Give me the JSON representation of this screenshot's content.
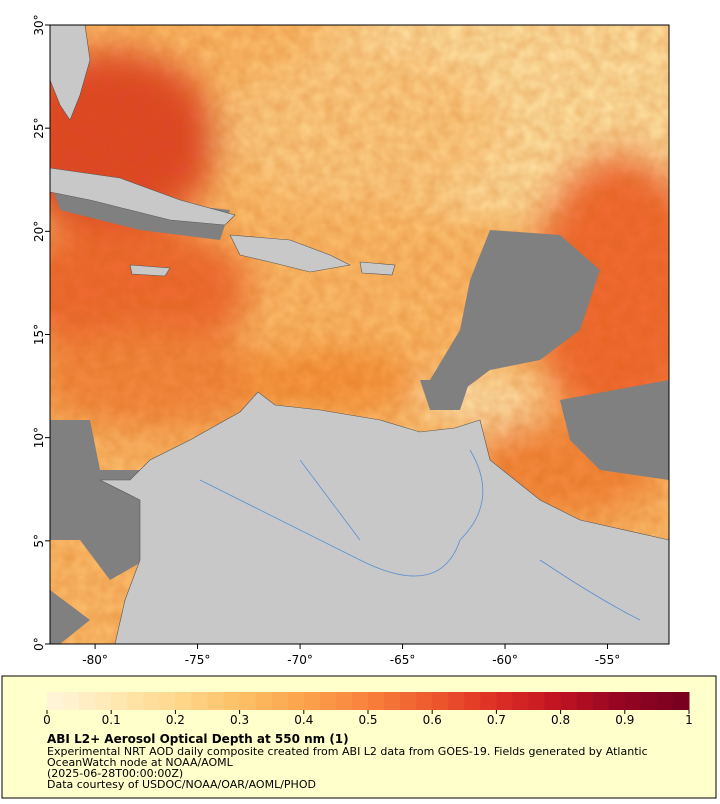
{
  "chart_data": {
    "type": "map",
    "xlim": [
      -82.2,
      -52.0
    ],
    "ylim": [
      0,
      30
    ],
    "xticks": [
      {
        "value": -80,
        "label": "-80°"
      },
      {
        "value": -75,
        "label": "-75°"
      },
      {
        "value": -70,
        "label": "-70°"
      },
      {
        "value": -65,
        "label": "-65°"
      },
      {
        "value": -60,
        "label": "-60°"
      },
      {
        "value": -55,
        "label": "-55°"
      }
    ],
    "yticks": [
      {
        "value": 0,
        "label": "0°"
      },
      {
        "value": 5,
        "label": "5°"
      },
      {
        "value": 10,
        "label": "10°"
      },
      {
        "value": 15,
        "label": "15°"
      },
      {
        "value": 20,
        "label": "20°"
      },
      {
        "value": 25,
        "label": "25°"
      },
      {
        "value": 30,
        "label": "30°"
      }
    ],
    "colorbar": {
      "range": [
        0,
        1
      ],
      "ticks": [
        0,
        0.1,
        0.2,
        0.3,
        0.4,
        0.5,
        0.6,
        0.7,
        0.8,
        0.9,
        1
      ],
      "colors": [
        "#fff5d6",
        "#ffe8b0",
        "#ffd68a",
        "#fdbf64",
        "#fca24c",
        "#f8813c",
        "#ef5a2e",
        "#de3024",
        "#c21421",
        "#960522",
        "#7a0020"
      ]
    },
    "title": "ABI L2+ Aerosol Optical Depth at 550 nm (1)",
    "notes": [
      "Experimental NRT AOD daily composite created from ABI L2 data from GOES-19. Fields generated by Atlantic",
      "OceanWatch node at NOAA/AOML",
      "(2025-06-28T00:00:00Z)",
      "Data courtesy of USDOC/NOAA/OAR/AOML/PHOD"
    ]
  }
}
